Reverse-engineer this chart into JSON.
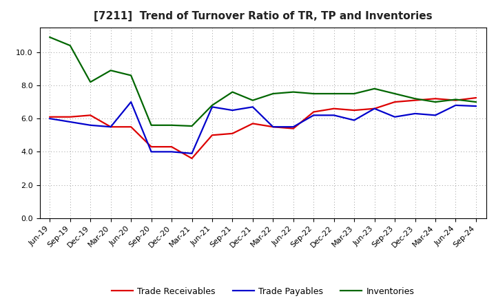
{
  "title": "[7211]  Trend of Turnover Ratio of TR, TP and Inventories",
  "x_labels": [
    "Jun-19",
    "Sep-19",
    "Dec-19",
    "Mar-20",
    "Jun-20",
    "Sep-20",
    "Dec-20",
    "Mar-21",
    "Jun-21",
    "Sep-21",
    "Dec-21",
    "Mar-22",
    "Jun-22",
    "Sep-22",
    "Dec-22",
    "Mar-23",
    "Jun-23",
    "Sep-23",
    "Dec-23",
    "Mar-24",
    "Jun-24",
    "Sep-24"
  ],
  "trade_receivables": [
    6.1,
    6.1,
    6.2,
    5.5,
    5.5,
    4.3,
    4.3,
    3.6,
    5.0,
    5.1,
    5.7,
    5.5,
    5.4,
    6.4,
    6.6,
    6.5,
    6.6,
    7.0,
    7.1,
    7.2,
    7.1,
    7.25
  ],
  "trade_payables": [
    6.0,
    5.8,
    5.6,
    5.5,
    7.0,
    4.0,
    4.0,
    3.9,
    6.7,
    6.5,
    6.7,
    5.5,
    5.5,
    6.2,
    6.2,
    5.9,
    6.6,
    6.1,
    6.3,
    6.2,
    6.8,
    6.75
  ],
  "inventories": [
    10.9,
    10.4,
    8.2,
    8.9,
    8.6,
    5.6,
    5.6,
    5.55,
    6.8,
    7.6,
    7.1,
    7.5,
    7.6,
    7.5,
    7.5,
    7.5,
    7.8,
    7.5,
    7.2,
    7.0,
    7.15,
    7.0
  ],
  "colors": {
    "trade_receivables": "#dd0000",
    "trade_payables": "#0000cc",
    "inventories": "#006600"
  },
  "ylim": [
    0,
    11.5
  ],
  "yticks": [
    0.0,
    2.0,
    4.0,
    6.0,
    8.0,
    10.0
  ],
  "background_color": "#ffffff",
  "grid_color": "#999999",
  "legend_labels": [
    "Trade Receivables",
    "Trade Payables",
    "Inventories"
  ],
  "title_fontsize": 11,
  "tick_fontsize": 8,
  "legend_fontsize": 9
}
